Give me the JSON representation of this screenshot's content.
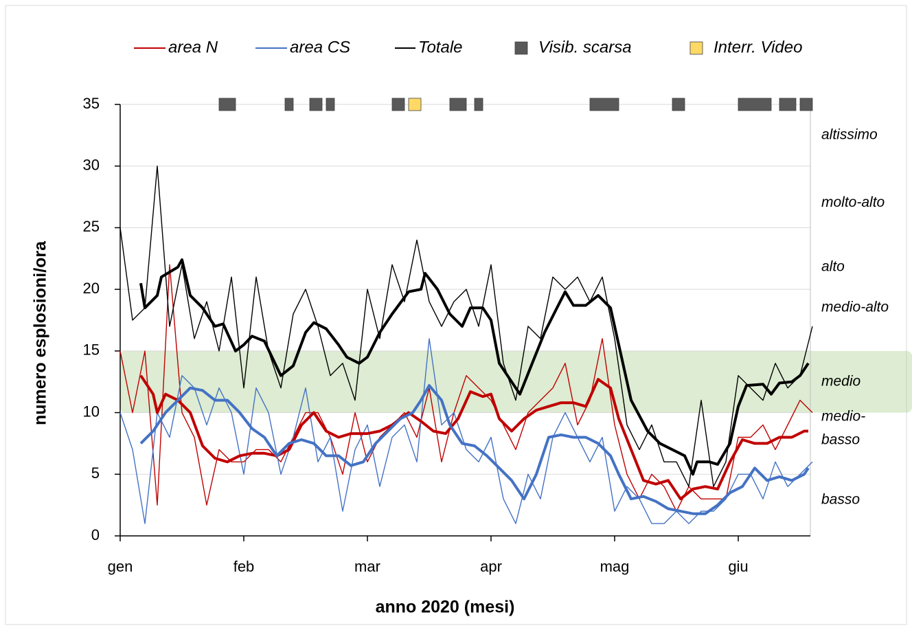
{
  "chart_data": {
    "type": "line",
    "x_title": "anno 2020 (mesi)",
    "y_title": "numero esplosioni/ora",
    "xlim": [
      0,
      168
    ],
    "xticks": [
      {
        "value": 0,
        "label": "gen"
      },
      {
        "value": 30,
        "label": "feb"
      },
      {
        "value": 60,
        "label": "mar"
      },
      {
        "value": 90,
        "label": "apr"
      },
      {
        "value": 120,
        "label": "mag"
      },
      {
        "value": 150,
        "label": "giu"
      }
    ],
    "ylim": [
      0,
      35
    ],
    "yticks": [
      0,
      5,
      10,
      15,
      20,
      25,
      30,
      35
    ],
    "grid": true,
    "band": {
      "range": [
        10,
        15
      ],
      "color": "#a9d08e"
    },
    "levels": [
      [
        "altissimo"
      ],
      [
        "molto-alto"
      ],
      [
        "alto"
      ],
      [
        "medio-alto"
      ],
      [
        "medio"
      ],
      [
        "medio-",
        "basso"
      ],
      [
        "basso"
      ]
    ],
    "x": [
      0,
      3,
      6,
      9,
      12,
      15,
      18,
      21,
      24,
      27,
      30,
      33,
      36,
      39,
      42,
      45,
      48,
      51,
      54,
      57,
      60,
      63,
      66,
      69,
      72,
      75,
      78,
      81,
      84,
      87,
      90,
      93,
      96,
      99,
      102,
      105,
      108,
      111,
      114,
      117,
      120,
      123,
      126,
      129,
      132,
      135,
      138,
      141,
      144,
      147,
      150,
      153,
      156,
      159,
      162,
      165,
      168
    ],
    "series": [
      {
        "name": "area N",
        "color": "#c00000",
        "values": [
          15,
          10,
          15,
          2.5,
          22,
          10,
          8,
          2.5,
          7,
          6,
          6,
          7,
          7,
          6,
          8,
          10,
          10,
          8,
          5,
          10,
          6,
          8,
          9,
          10,
          8,
          12,
          6,
          10,
          13,
          12,
          11,
          9,
          7,
          10,
          11,
          12,
          14,
          9,
          11,
          16,
          9,
          5,
          3,
          5,
          4,
          2,
          4,
          3,
          3,
          3,
          8,
          8,
          9,
          7,
          9,
          11,
          10
        ],
        "mean": {
          "x": [
            5,
            8,
            9,
            11,
            14,
            17,
            20,
            23,
            26,
            29,
            32,
            35,
            38,
            41,
            44,
            47,
            50,
            53,
            56,
            60,
            63,
            66,
            68,
            70,
            73,
            76,
            79,
            82,
            85,
            88,
            90,
            92,
            95,
            98,
            101,
            104,
            107,
            110,
            113,
            116,
            119,
            121,
            124,
            127,
            130,
            133,
            136,
            139,
            142,
            145,
            148,
            151,
            154,
            157,
            160,
            163,
            166,
            167
          ],
          "values": [
            13,
            11.5,
            10,
            11.5,
            11,
            10,
            7.3,
            6.3,
            6,
            6.5,
            6.7,
            6.7,
            6.5,
            7,
            9,
            10,
            8.5,
            8,
            8.3,
            8.3,
            8.5,
            9,
            9.5,
            10,
            9.3,
            8.5,
            8.3,
            9.5,
            11.7,
            11.3,
            11.5,
            9.5,
            8.5,
            9.5,
            10.2,
            10.5,
            10.8,
            10.8,
            10.5,
            12.7,
            12,
            9.5,
            7,
            4.5,
            4.2,
            4.5,
            3,
            3.8,
            4,
            3.8,
            6,
            7.8,
            7.5,
            7.5,
            8,
            8,
            8.5,
            8.5
          ]
        }
      },
      {
        "name": "area CS",
        "color": "#4472c4",
        "values": [
          10,
          7,
          1,
          10,
          8,
          13,
          12,
          9,
          12,
          10,
          5,
          12,
          10,
          5,
          8,
          12,
          6,
          8,
          2,
          7,
          9,
          4,
          8,
          9,
          6,
          16,
          9,
          10,
          7,
          6,
          8,
          3,
          1,
          5,
          3,
          8,
          10,
          8,
          6,
          8,
          2,
          4,
          3,
          1,
          1,
          2,
          1,
          2,
          2,
          3,
          5,
          5,
          3,
          6,
          4,
          5,
          6
        ],
        "mean": {
          "x": [
            5,
            8,
            11,
            14,
            17,
            20,
            23,
            26,
            29,
            32,
            35,
            38,
            41,
            44,
            47,
            50,
            53,
            56,
            59,
            62,
            65,
            68,
            71,
            73,
            75,
            78,
            80,
            83,
            86,
            89,
            92,
            95,
            98,
            101,
            104,
            107,
            110,
            113,
            116,
            119,
            121,
            124,
            127,
            130,
            133,
            136,
            139,
            142,
            145,
            148,
            151,
            154,
            157,
            160,
            163,
            166,
            167
          ],
          "values": [
            7.5,
            8.5,
            10,
            11,
            12,
            11.8,
            11,
            11,
            10,
            8.7,
            8,
            6.5,
            7.5,
            7.8,
            7.5,
            6.5,
            6.5,
            5.7,
            6,
            7.5,
            8.5,
            9.5,
            10,
            11,
            12.2,
            11,
            9,
            7.5,
            7.3,
            6.5,
            5.5,
            4.5,
            3,
            5,
            8,
            8.2,
            8,
            8,
            7.5,
            6.5,
            5,
            3,
            3.2,
            2.8,
            2.2,
            2,
            1.8,
            1.8,
            2.5,
            3.5,
            4,
            5.5,
            4.5,
            4.8,
            4.5,
            5,
            5.5
          ]
        }
      },
      {
        "name": "Totale",
        "color": "#000000",
        "values": [
          25,
          17.5,
          18.5,
          30,
          17,
          22,
          16,
          19,
          15,
          21,
          12,
          21,
          15,
          12,
          18,
          20,
          17,
          13,
          14,
          11,
          20,
          16,
          22,
          19,
          24,
          19,
          17,
          19,
          20,
          17,
          22,
          14,
          11,
          17,
          16,
          21,
          20,
          21,
          19,
          21,
          16,
          9,
          7,
          9,
          6,
          6,
          4,
          11,
          4,
          6,
          13,
          12,
          11,
          14,
          12,
          13,
          17
        ],
        "mean": {
          "x": [
            5,
            6,
            9,
            10,
            14,
            15,
            17,
            20,
            23,
            25,
            28,
            30,
            32,
            35,
            39,
            42,
            45,
            47,
            50,
            53,
            55,
            58,
            60,
            63,
            66,
            70,
            73,
            74,
            77,
            80,
            83,
            85,
            88,
            90,
            92,
            95,
            97,
            100,
            103,
            106,
            108,
            110,
            113,
            116,
            119,
            121,
            124,
            128,
            131,
            134,
            137,
            139,
            140,
            143,
            145,
            148,
            150,
            152,
            156,
            158,
            160,
            163,
            165,
            167
          ],
          "values": [
            20.5,
            18.5,
            19.5,
            21,
            21.8,
            22.4,
            19.5,
            18.5,
            17,
            17.2,
            15,
            15.5,
            16.2,
            15.8,
            13,
            13.8,
            16.5,
            17.3,
            16.8,
            15.5,
            14.5,
            14,
            14.5,
            16.5,
            18,
            19.8,
            20,
            21.3,
            20,
            18,
            17,
            18.5,
            18.5,
            17.5,
            14,
            12.5,
            11.5,
            14,
            16.5,
            18.5,
            19.8,
            18.7,
            18.7,
            19.5,
            18.5,
            15.5,
            11,
            8.5,
            7.5,
            7,
            6.5,
            5,
            6,
            6,
            5.8,
            7.5,
            10.5,
            12.2,
            12.3,
            11.5,
            12.4,
            12.5,
            13,
            14
          ]
        }
      }
    ],
    "events": [
      {
        "name": "Visib. scarsa",
        "color": "#595959",
        "ranges": [
          [
            24,
            28
          ],
          [
            40,
            42
          ],
          [
            46,
            49
          ],
          [
            50,
            52
          ],
          [
            66,
            69
          ],
          [
            80,
            84
          ],
          [
            86,
            88
          ],
          [
            114,
            121
          ],
          [
            134,
            137
          ],
          [
            150,
            158
          ],
          [
            160,
            164
          ],
          [
            165,
            168
          ]
        ]
      },
      {
        "name": "Interr. Video",
        "color": "#ffd966",
        "ranges": [
          [
            70,
            73
          ]
        ]
      }
    ]
  }
}
